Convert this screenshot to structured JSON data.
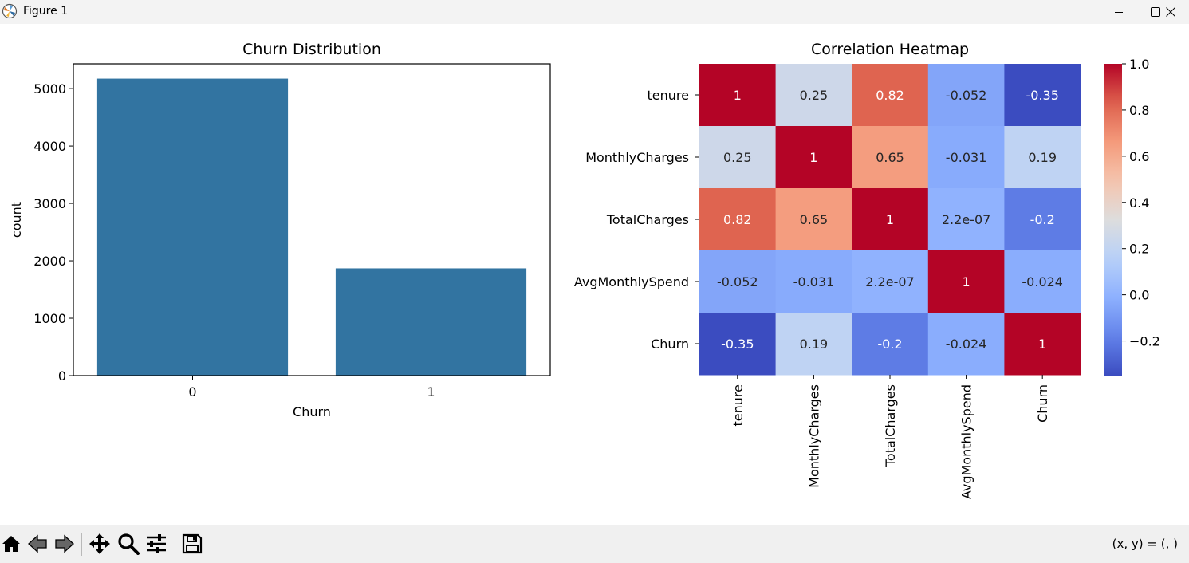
{
  "window": {
    "title": "Figure 1",
    "buttons": [
      "minimize",
      "maximize",
      "close"
    ]
  },
  "toolbar": {
    "tools": [
      {
        "name": "home",
        "icon": "home-icon"
      },
      {
        "name": "back",
        "icon": "arrow-left-icon"
      },
      {
        "name": "forward",
        "icon": "arrow-right-icon"
      },
      {
        "name": "pan",
        "icon": "move-icon"
      },
      {
        "name": "zoom",
        "icon": "search-icon"
      },
      {
        "name": "configure-subplots",
        "icon": "sliders-icon"
      },
      {
        "name": "save",
        "icon": "save-icon"
      }
    ],
    "coords_text": "(x, y) = (, )"
  },
  "chart_data": [
    {
      "type": "bar",
      "title": "Churn Distribution",
      "xlabel": "Churn",
      "ylabel": "count",
      "categories": [
        "0",
        "1"
      ],
      "values": [
        5174,
        1869
      ],
      "ylim": [
        0,
        5432
      ],
      "yticks": [
        0,
        1000,
        2000,
        3000,
        4000,
        5000
      ],
      "color": "#3274a1",
      "grid": false
    },
    {
      "type": "heatmap",
      "title": "Correlation Heatmap",
      "rows": [
        "tenure",
        "MonthlyCharges",
        "TotalCharges",
        "AvgMonthlySpend",
        "Churn"
      ],
      "columns": [
        "tenure",
        "MonthlyCharges",
        "TotalCharges",
        "AvgMonthlySpend",
        "Churn"
      ],
      "values": [
        [
          1,
          0.25,
          0.82,
          -0.052,
          -0.35
        ],
        [
          0.25,
          1,
          0.65,
          -0.031,
          0.19
        ],
        [
          0.82,
          0.65,
          1,
          2.2e-07,
          -0.2
        ],
        [
          -0.052,
          -0.031,
          2.2e-07,
          1,
          -0.024
        ],
        [
          -0.35,
          0.19,
          -0.2,
          -0.024,
          1
        ]
      ],
      "annotations": [
        [
          "1",
          "0.25",
          "0.82",
          "-0.052",
          "-0.35"
        ],
        [
          "0.25",
          "1",
          "0.65",
          "-0.031",
          "0.19"
        ],
        [
          "0.82",
          "0.65",
          "1",
          "2.2e-07",
          "-0.2"
        ],
        [
          "-0.052",
          "-0.031",
          "2.2e-07",
          "1",
          "-0.024"
        ],
        [
          "-0.35",
          "0.19",
          "-0.2",
          "-0.024",
          "1"
        ]
      ],
      "colormap": "coolwarm",
      "vmin": -0.35,
      "vmax": 1.0,
      "colorbar_ticks": [
        1.0,
        0.8,
        0.6,
        0.4,
        0.2,
        0.0,
        -0.2
      ],
      "colorbar_ticklabels": [
        "1.0",
        "0.8",
        "0.6",
        "0.4",
        "0.2",
        "0.0",
        "−0.2"
      ]
    }
  ]
}
